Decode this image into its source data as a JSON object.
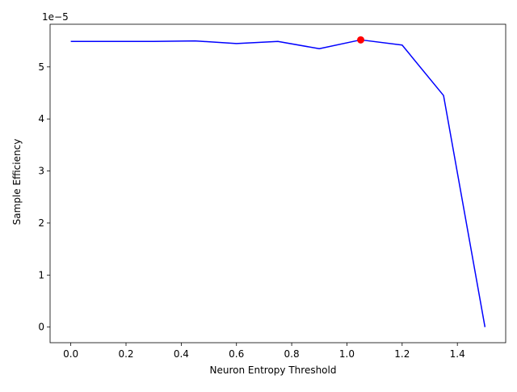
{
  "chart_data": {
    "type": "line",
    "title": "",
    "xlabel": "Neuron Entropy Threshold",
    "ylabel": "Sample Efficiency",
    "y_offset_label": "1e−5",
    "xlim": [
      -0.075,
      1.575
    ],
    "ylim": [
      -0.3,
      5.82
    ],
    "y_scale_factor": 1e-05,
    "grid": false,
    "legend": "none",
    "x_ticks": [
      0.0,
      0.2,
      0.4,
      0.6,
      0.8,
      1.0,
      1.2,
      1.4
    ],
    "x_tick_labels": [
      "0.0",
      "0.2",
      "0.4",
      "0.6",
      "0.8",
      "1.0",
      "1.2",
      "1.4"
    ],
    "y_ticks": [
      0,
      1,
      2,
      3,
      4,
      5
    ],
    "y_tick_labels": [
      "0",
      "1",
      "2",
      "3",
      "4",
      "5"
    ],
    "series": [
      {
        "color": "#0000ff",
        "x": [
          0.0,
          0.15,
          0.3,
          0.45,
          0.6,
          0.75,
          0.9,
          1.05,
          1.2,
          1.35,
          1.5
        ],
        "y": [
          5.49,
          5.49,
          5.49,
          5.5,
          5.45,
          5.49,
          5.35,
          5.52,
          5.42,
          4.45,
          0.0
        ]
      }
    ],
    "highlight_point": {
      "x": 1.05,
      "y": 5.52,
      "color": "#ff0000"
    }
  }
}
